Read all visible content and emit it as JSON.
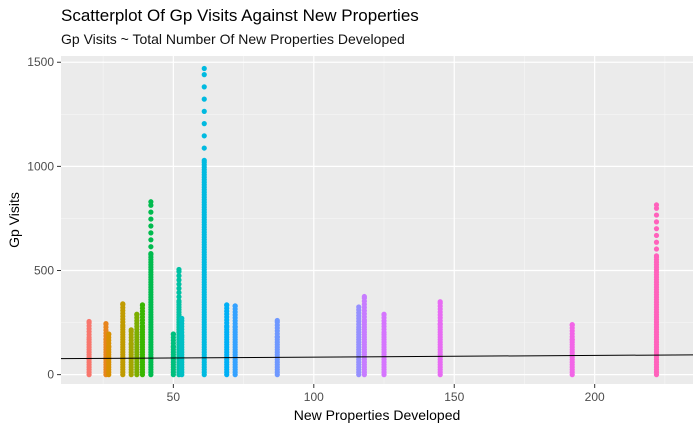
{
  "chart_data": {
    "type": "scatter",
    "title": "Scatterplot Of Gp Visits Against New Properties",
    "subtitle": "Gp Visits ~ Total Number Of New Properties Developed",
    "xlabel": "New Properties Developed",
    "ylabel": "Gp Visits",
    "xlim": [
      10,
      235
    ],
    "ylim": [
      -45,
      1530
    ],
    "xticks": [
      50,
      100,
      150,
      200
    ],
    "yticks": [
      0,
      500,
      1000,
      1500
    ],
    "grid": true,
    "legend": "none",
    "columns": [
      {
        "x": 20,
        "min": 0,
        "max": 255,
        "color": "#F8766D"
      },
      {
        "x": 26,
        "min": 0,
        "max": 245,
        "color": "#E7851E"
      },
      {
        "x": 27,
        "min": 0,
        "max": 195,
        "color": "#D89000"
      },
      {
        "x": 32,
        "min": 0,
        "max": 340,
        "color": "#C09B00"
      },
      {
        "x": 35,
        "min": 0,
        "max": 215,
        "color": "#A3A500"
      },
      {
        "x": 37,
        "min": 0,
        "max": 290,
        "color": "#7CAE00"
      },
      {
        "x": 39,
        "min": 0,
        "max": 335,
        "color": "#39B600"
      },
      {
        "x": 42,
        "min": 0,
        "max": 830,
        "color": "#00BB4E"
      },
      {
        "x": 50,
        "min": 0,
        "max": 195,
        "color": "#00BF7D"
      },
      {
        "x": 52,
        "min": 0,
        "max": 505,
        "color": "#00C1A3"
      },
      {
        "x": 53,
        "min": 0,
        "max": 270,
        "color": "#00BFC4"
      },
      {
        "x": 61,
        "min": 0,
        "max": 1470,
        "color": "#00BAE0"
      },
      {
        "x": 69,
        "min": 0,
        "max": 335,
        "color": "#00B0F6"
      },
      {
        "x": 72,
        "min": 0,
        "max": 330,
        "color": "#35A2FF"
      },
      {
        "x": 87,
        "min": 0,
        "max": 260,
        "color": "#6F98FF"
      },
      {
        "x": 116,
        "min": 0,
        "max": 325,
        "color": "#9590FF"
      },
      {
        "x": 118,
        "min": 0,
        "max": 375,
        "color": "#C77CFF"
      },
      {
        "x": 125,
        "min": 0,
        "max": 290,
        "color": "#D575FE"
      },
      {
        "x": 145,
        "min": 0,
        "max": 350,
        "color": "#E76BF3"
      },
      {
        "x": 192,
        "min": 0,
        "max": 240,
        "color": "#F265E7"
      },
      {
        "x": 222,
        "min": 0,
        "max": 815,
        "color": "#FF62BC"
      }
    ],
    "regression_line": {
      "x": [
        10,
        235
      ],
      "y": [
        77,
        95
      ],
      "color": "#000000"
    }
  }
}
